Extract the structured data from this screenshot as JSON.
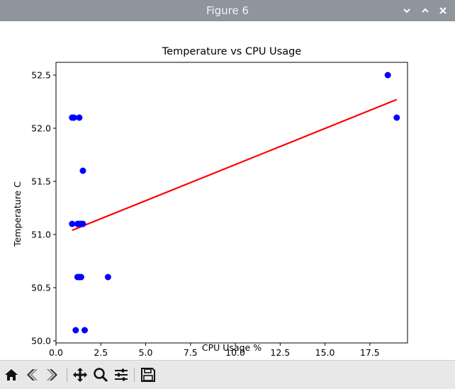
{
  "window": {
    "title": "Figure 6",
    "controls": [
      "minimize",
      "maximize",
      "close"
    ]
  },
  "toolbar": {
    "buttons": [
      {
        "name": "home",
        "icon": "home-icon"
      },
      {
        "name": "back",
        "icon": "back-arrow-icon"
      },
      {
        "name": "forward",
        "icon": "forward-arrow-icon"
      },
      {
        "name": "pan",
        "icon": "pan-icon"
      },
      {
        "name": "zoom",
        "icon": "zoom-icon"
      },
      {
        "name": "configure-subplots",
        "icon": "sliders-icon"
      },
      {
        "name": "save",
        "icon": "save-icon"
      }
    ]
  },
  "chart_data": {
    "type": "scatter",
    "title": "Temperature vs CPU Usage",
    "xlabel": "CPU Usage %",
    "ylabel": "Temperature C",
    "xlim": [
      0.0,
      19.6
    ],
    "ylim": [
      49.98,
      52.62
    ],
    "xticks": [
      0.0,
      2.5,
      5.0,
      7.5,
      10.0,
      12.5,
      15.0,
      17.5
    ],
    "xtick_labels": [
      "0.0",
      "2.5",
      "5.0",
      "7.5",
      "10.0",
      "12.5",
      "15.0",
      "17.5"
    ],
    "yticks": [
      50.0,
      50.5,
      51.0,
      51.5,
      52.0,
      52.5
    ],
    "ytick_labels": [
      "50.0",
      "50.5",
      "51.0",
      "51.5",
      "52.0",
      "52.5"
    ],
    "grid": false,
    "series": [
      {
        "kind": "points",
        "color": "#0000ff",
        "points": [
          {
            "x": 0.9,
            "y": 52.1
          },
          {
            "x": 1.0,
            "y": 52.1
          },
          {
            "x": 1.3,
            "y": 52.1
          },
          {
            "x": 1.5,
            "y": 51.6
          },
          {
            "x": 0.9,
            "y": 51.1
          },
          {
            "x": 1.2,
            "y": 51.1
          },
          {
            "x": 1.3,
            "y": 51.1
          },
          {
            "x": 1.4,
            "y": 51.1
          },
          {
            "x": 1.5,
            "y": 51.1
          },
          {
            "x": 1.2,
            "y": 50.6
          },
          {
            "x": 1.3,
            "y": 50.6
          },
          {
            "x": 1.4,
            "y": 50.6
          },
          {
            "x": 2.9,
            "y": 50.6
          },
          {
            "x": 1.1,
            "y": 50.1
          },
          {
            "x": 1.6,
            "y": 50.1
          },
          {
            "x": 18.5,
            "y": 52.5
          },
          {
            "x": 19.0,
            "y": 52.1
          }
        ]
      },
      {
        "kind": "fit-line",
        "color": "#ff0000",
        "x": [
          0.9,
          19.0
        ],
        "y": [
          51.04,
          52.27
        ]
      }
    ]
  }
}
